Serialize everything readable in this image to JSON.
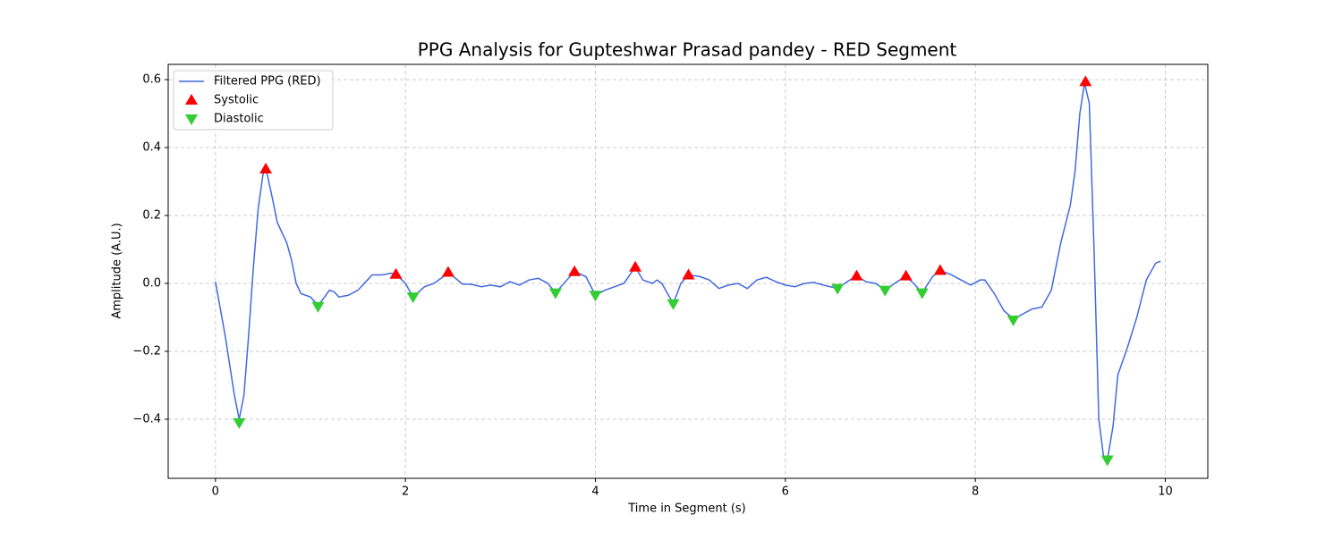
{
  "chart_data": {
    "type": "line",
    "title": "PPG Analysis for Gupteshwar Prasad pandey - RED Segment",
    "x_label": "Time in Segment (s)",
    "y_label": "Amplitude (A.U.)",
    "xlim": [
      -0.4975,
      10.4475
    ],
    "ylim": [
      -0.574,
      0.645
    ],
    "xticks": [
      0,
      2,
      4,
      6,
      8,
      10
    ],
    "yticks": [
      {
        "value": -0.4,
        "label": "−0.4"
      },
      {
        "value": -0.2,
        "label": "−0.2"
      },
      {
        "value": 0,
        "label": "0.0"
      },
      0.2,
      0.4,
      0.6
    ],
    "grid": true,
    "legend": "upper left",
    "series": [
      {
        "name": "Filtered PPG (RED)",
        "type": "line",
        "color": "#4169e1",
        "x": [
          0,
          0.1,
          0.2,
          0.25,
          0.3,
          0.35,
          0.4,
          0.45,
          0.5,
          0.53,
          0.6,
          0.65,
          0.7,
          0.75,
          0.8,
          0.85,
          0.9,
          1.0,
          1.08,
          1.15,
          1.2,
          1.25,
          1.3,
          1.4,
          1.5,
          1.6,
          1.65,
          1.75,
          1.85,
          1.9,
          2.0,
          2.08,
          2.2,
          2.3,
          2.4,
          2.45,
          2.55,
          2.6,
          2.7,
          2.8,
          2.9,
          3.0,
          3.1,
          3.2,
          3.3,
          3.4,
          3.5,
          3.58,
          3.7,
          3.78,
          3.9,
          4.0,
          4.1,
          4.2,
          4.3,
          4.42,
          4.5,
          4.6,
          4.65,
          4.7,
          4.82,
          4.9,
          4.98,
          5.1,
          5.2,
          5.3,
          5.4,
          5.5,
          5.6,
          5.7,
          5.8,
          5.9,
          6.0,
          6.1,
          6.2,
          6.3,
          6.4,
          6.55,
          6.65,
          6.75,
          6.85,
          6.95,
          7.05,
          7.15,
          7.27,
          7.35,
          7.44,
          7.55,
          7.63,
          7.75,
          7.85,
          7.95,
          8.05,
          8.1,
          8.2,
          8.3,
          8.4,
          8.5,
          8.6,
          8.7,
          8.8,
          8.9,
          9.0,
          9.05,
          9.1,
          9.15,
          9.2,
          9.25,
          9.3,
          9.35,
          9.39,
          9.45,
          9.5,
          9.6,
          9.7,
          9.8,
          9.9,
          9.95
        ],
        "values": [
          0.005,
          -0.15,
          -0.33,
          -0.4,
          -0.33,
          -0.15,
          0.05,
          0.22,
          0.32,
          0.34,
          0.25,
          0.18,
          0.15,
          0.12,
          0.07,
          0.0,
          -0.03,
          -0.04,
          -0.065,
          -0.04,
          -0.02,
          -0.025,
          -0.04,
          -0.035,
          -0.02,
          0.01,
          0.025,
          0.025,
          0.03,
          0.027,
          0.0,
          -0.04,
          -0.01,
          0.0,
          0.02,
          0.033,
          0.01,
          -0.002,
          -0.003,
          -0.01,
          -0.005,
          -0.01,
          0.005,
          -0.005,
          0.01,
          0.015,
          0.0,
          -0.028,
          0.01,
          0.035,
          0.02,
          -0.035,
          -0.02,
          -0.01,
          0.0,
          0.048,
          0.01,
          0.0,
          0.01,
          0.0,
          -0.06,
          0.0,
          0.025,
          0.02,
          0.01,
          -0.015,
          -0.005,
          0.0,
          -0.015,
          0.01,
          0.018,
          0.005,
          -0.005,
          -0.01,
          0.0,
          0.003,
          -0.005,
          -0.015,
          0.005,
          0.022,
          0.005,
          0.0,
          -0.02,
          0.0,
          0.022,
          0.0,
          -0.028,
          0.02,
          0.038,
          0.025,
          0.01,
          -0.005,
          0.01,
          0.01,
          -0.03,
          -0.08,
          -0.105,
          -0.09,
          -0.075,
          -0.07,
          -0.02,
          0.12,
          0.23,
          0.33,
          0.5,
          0.59,
          0.53,
          0.1,
          -0.4,
          -0.51,
          -0.52,
          -0.42,
          -0.27,
          -0.19,
          -0.1,
          0.01,
          0.06,
          0.065
        ]
      },
      {
        "name": "Systolic",
        "type": "scatter",
        "marker": "^",
        "color": "#ff0000",
        "x": [
          0.53,
          1.9,
          2.45,
          3.78,
          4.42,
          4.98,
          6.75,
          7.27,
          7.63,
          9.16
        ],
        "values": [
          0.337,
          0.027,
          0.033,
          0.035,
          0.048,
          0.025,
          0.022,
          0.022,
          0.038,
          0.594
        ]
      },
      {
        "name": "Diastolic",
        "type": "scatter",
        "marker": "v",
        "color": "#32cd32",
        "x": [
          0.25,
          1.08,
          2.08,
          3.58,
          4.0,
          4.82,
          6.55,
          7.05,
          7.44,
          8.4,
          9.39
        ],
        "values": [
          -0.41,
          -0.068,
          -0.04,
          -0.028,
          -0.035,
          -0.06,
          -0.015,
          -0.02,
          -0.028,
          -0.108,
          -0.52
        ]
      }
    ]
  }
}
